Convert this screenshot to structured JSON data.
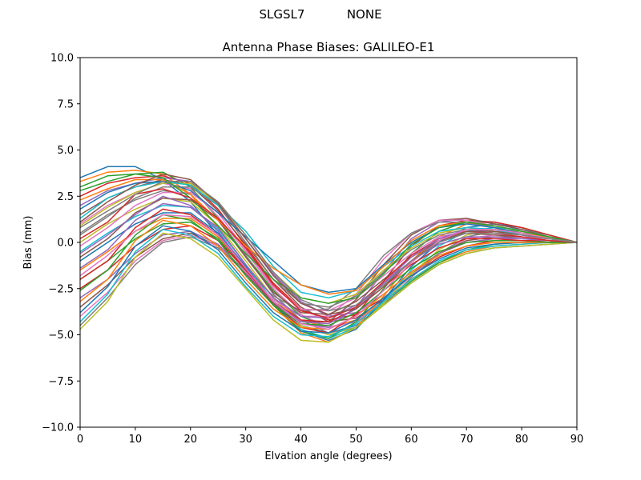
{
  "figure": {
    "suptitle_station": "SLGSL7",
    "suptitle_radome": "NONE"
  },
  "chart_data": {
    "type": "line",
    "title": "Antenna Phase Biases: GALILEO-E1",
    "xlabel": "Elvation angle (degrees)",
    "ylabel": "Bias (mm)",
    "xlim": [
      0,
      90
    ],
    "ylim": [
      -10,
      10
    ],
    "xticks": [
      0,
      10,
      20,
      30,
      40,
      50,
      60,
      70,
      80,
      90
    ],
    "yticks": [
      -10.0,
      -7.5,
      -5.0,
      -2.5,
      0.0,
      2.5,
      5.0,
      7.5,
      10.0
    ],
    "xtick_labels": [
      "0",
      "10",
      "20",
      "30",
      "40",
      "50",
      "60",
      "70",
      "80",
      "90"
    ],
    "ytick_labels": [
      "−10.0",
      "−7.5",
      "−5.0",
      "−2.5",
      "0.0",
      "2.5",
      "5.0",
      "7.5",
      "10.0"
    ],
    "grid": false,
    "legend": "none",
    "x": [
      0,
      5,
      10,
      15,
      20,
      25,
      30,
      35,
      40,
      45,
      50,
      55,
      60,
      65,
      70,
      75,
      80,
      85,
      90
    ],
    "colors": [
      "#1f77b4",
      "#ff7f0e",
      "#2ca02c",
      "#d62728",
      "#9467bd",
      "#8c564b",
      "#e377c2",
      "#7f7f7f",
      "#bcbd22",
      "#17becf"
    ],
    "series": [
      {
        "values": [
          3.5,
          4.1,
          4.1,
          3.4,
          2.2,
          0.4,
          -1.4,
          -3.2,
          -4.5,
          -4.9,
          -4.5,
          -3.4,
          -2.2,
          -1.2,
          -0.6,
          -0.3,
          -0.2,
          -0.1,
          0.0
        ]
      },
      {
        "values": [
          3.3,
          3.8,
          3.9,
          3.7,
          2.6,
          0.8,
          -1.2,
          -3.0,
          -4.2,
          -4.6,
          -4.2,
          -3.2,
          -2.0,
          -1.1,
          -0.5,
          -0.2,
          -0.1,
          0.0,
          0.0
        ]
      },
      {
        "values": [
          3.0,
          3.6,
          3.7,
          3.8,
          3.0,
          1.3,
          -0.7,
          -2.6,
          -4.0,
          -4.6,
          -4.3,
          -3.3,
          -2.1,
          -1.1,
          -0.4,
          -0.1,
          0.0,
          0.0,
          0.0
        ]
      },
      {
        "values": [
          2.5,
          3.2,
          3.5,
          3.6,
          3.2,
          1.8,
          -0.2,
          -2.2,
          -3.6,
          -4.2,
          -3.9,
          -3.0,
          -1.8,
          -0.8,
          -0.2,
          0.1,
          0.1,
          0.1,
          0.0
        ]
      },
      {
        "values": [
          2.0,
          2.8,
          3.2,
          3.5,
          3.3,
          2.0,
          0.2,
          -1.7,
          -3.2,
          -4.0,
          -3.8,
          -2.8,
          -1.6,
          -0.6,
          0.0,
          0.2,
          0.2,
          0.1,
          0.0
        ]
      },
      {
        "values": [
          1.5,
          2.4,
          3.0,
          3.4,
          3.1,
          1.7,
          -0.1,
          -2.0,
          -3.5,
          -4.3,
          -4.1,
          -3.1,
          -1.7,
          -0.6,
          0.1,
          0.3,
          0.3,
          0.2,
          0.0
        ]
      },
      {
        "values": [
          1.0,
          2.0,
          2.7,
          3.2,
          2.9,
          1.4,
          -0.5,
          -2.5,
          -3.9,
          -4.6,
          -4.3,
          -3.2,
          -1.8,
          -0.6,
          0.2,
          0.4,
          0.3,
          0.2,
          0.0
        ]
      },
      {
        "values": [
          0.5,
          1.5,
          2.3,
          2.8,
          2.6,
          1.2,
          -0.7,
          -2.8,
          -4.2,
          -4.9,
          -4.6,
          -3.4,
          -1.9,
          -0.6,
          0.3,
          0.6,
          0.5,
          0.3,
          0.0
        ]
      },
      {
        "values": [
          0.0,
          1.0,
          1.8,
          2.4,
          2.2,
          0.9,
          -1.0,
          -3.0,
          -4.5,
          -5.0,
          -4.6,
          -3.3,
          -1.7,
          -0.4,
          0.4,
          0.7,
          0.6,
          0.3,
          0.0
        ]
      },
      {
        "values": [
          -0.5,
          0.5,
          1.4,
          2.0,
          1.9,
          0.7,
          -1.2,
          -3.2,
          -4.7,
          -5.2,
          -4.6,
          -3.2,
          -1.5,
          -0.2,
          0.6,
          0.8,
          0.7,
          0.4,
          0.0
        ]
      },
      {
        "values": [
          -1.0,
          0.0,
          1.0,
          1.6,
          1.6,
          0.5,
          -1.3,
          -3.3,
          -4.8,
          -5.3,
          -4.7,
          -3.1,
          -1.3,
          0.0,
          0.8,
          1.0,
          0.8,
          0.4,
          0.0
        ]
      },
      {
        "values": [
          -1.5,
          -0.5,
          0.6,
          1.3,
          1.3,
          0.3,
          -1.4,
          -3.4,
          -4.9,
          -5.4,
          -4.6,
          -2.9,
          -1.0,
          0.3,
          1.0,
          1.1,
          0.8,
          0.4,
          0.0
        ]
      },
      {
        "values": [
          -2.0,
          -1.0,
          0.2,
          1.0,
          1.1,
          0.2,
          -1.5,
          -3.4,
          -4.8,
          -5.2,
          -4.3,
          -2.5,
          -0.6,
          0.6,
          1.1,
          1.1,
          0.8,
          0.4,
          0.0
        ]
      },
      {
        "values": [
          -2.5,
          -1.5,
          -0.2,
          0.7,
          0.9,
          0.1,
          -1.5,
          -3.3,
          -4.6,
          -4.9,
          -3.9,
          -2.1,
          -0.2,
          0.9,
          1.2,
          1.1,
          0.8,
          0.4,
          0.0
        ]
      },
      {
        "values": [
          -3.0,
          -2.0,
          -0.6,
          0.4,
          0.6,
          -0.1,
          -1.6,
          -3.3,
          -4.4,
          -4.6,
          -3.5,
          -1.6,
          0.2,
          1.1,
          1.3,
          1.0,
          0.7,
          0.3,
          0.0
        ]
      },
      {
        "values": [
          -3.5,
          -2.3,
          -0.8,
          0.2,
          0.5,
          -0.2,
          -1.7,
          -3.3,
          -4.3,
          -4.3,
          -3.1,
          -1.2,
          0.4,
          1.2,
          1.3,
          1.0,
          0.7,
          0.3,
          0.0
        ]
      },
      {
        "values": [
          -4.0,
          -2.7,
          -1.0,
          0.1,
          0.4,
          -0.2,
          -1.6,
          -3.1,
          -4.0,
          -4.0,
          -2.8,
          -0.9,
          0.5,
          1.2,
          1.2,
          0.9,
          0.6,
          0.3,
          0.0
        ]
      },
      {
        "values": [
          -4.5,
          -3.0,
          -1.2,
          0.0,
          0.3,
          -0.3,
          -1.5,
          -2.9,
          -3.7,
          -3.6,
          -2.5,
          -0.7,
          0.5,
          1.1,
          1.1,
          0.8,
          0.5,
          0.2,
          0.0
        ]
      },
      {
        "values": [
          -4.7,
          -3.2,
          -0.8,
          0.5,
          0.2,
          -0.8,
          -2.5,
          -4.2,
          -5.3,
          -5.4,
          -4.6,
          -3.4,
          -2.2,
          -1.2,
          -0.6,
          -0.3,
          -0.2,
          -0.1,
          0.0
        ]
      },
      {
        "values": [
          -4.3,
          -2.8,
          -0.5,
          0.7,
          0.4,
          -0.6,
          -2.4,
          -4.0,
          -5.0,
          -5.1,
          -4.4,
          -3.2,
          -2.0,
          -1.0,
          -0.4,
          -0.2,
          -0.1,
          0.0,
          0.0
        ]
      },
      {
        "values": [
          -3.8,
          -2.4,
          -0.2,
          0.9,
          0.6,
          -0.4,
          -2.2,
          -3.8,
          -4.8,
          -4.9,
          -4.2,
          -3.0,
          -1.8,
          -0.9,
          -0.3,
          -0.1,
          0.0,
          0.0,
          0.0
        ]
      },
      {
        "values": [
          -3.2,
          -2.0,
          0.1,
          1.2,
          0.9,
          -0.2,
          -2.0,
          -3.6,
          -4.6,
          -4.7,
          -4.0,
          -2.8,
          -1.6,
          -0.7,
          -0.2,
          0.0,
          0.0,
          0.0,
          0.0
        ]
      },
      {
        "values": [
          -2.6,
          -1.5,
          0.4,
          1.5,
          1.2,
          0.1,
          -1.8,
          -3.4,
          -4.4,
          -4.5,
          -3.8,
          -2.6,
          -1.4,
          -0.5,
          0.0,
          0.1,
          0.1,
          0.0,
          0.0
        ]
      },
      {
        "values": [
          -2.0,
          -1.0,
          0.8,
          1.8,
          1.5,
          0.4,
          -1.5,
          -3.2,
          -4.2,
          -4.3,
          -3.6,
          -2.4,
          -1.2,
          -0.3,
          0.2,
          0.2,
          0.1,
          0.1,
          0.0
        ]
      },
      {
        "values": [
          -1.4,
          -0.4,
          1.2,
          2.1,
          1.9,
          0.8,
          -1.2,
          -3.0,
          -4.0,
          -4.1,
          -3.4,
          -2.2,
          -1.0,
          -0.1,
          0.3,
          0.3,
          0.2,
          0.1,
          0.0
        ]
      },
      {
        "values": [
          -0.8,
          0.2,
          1.6,
          2.4,
          2.3,
          1.2,
          -0.8,
          -2.7,
          -3.8,
          -3.9,
          -3.2,
          -2.0,
          -0.8,
          0.1,
          0.5,
          0.4,
          0.3,
          0.1,
          0.0
        ]
      },
      {
        "values": [
          -0.2,
          0.8,
          2.0,
          2.7,
          2.7,
          1.6,
          -0.4,
          -2.4,
          -3.6,
          -3.7,
          -3.0,
          -1.8,
          -0.6,
          0.3,
          0.6,
          0.5,
          0.3,
          0.1,
          0.0
        ]
      },
      {
        "values": [
          0.4,
          1.4,
          2.4,
          3.0,
          3.0,
          2.0,
          0.0,
          -2.0,
          -3.3,
          -3.5,
          -2.9,
          -1.6,
          -0.4,
          0.4,
          0.7,
          0.6,
          0.4,
          0.2,
          0.0
        ]
      },
      {
        "values": [
          0.9,
          1.9,
          2.7,
          3.2,
          3.2,
          2.1,
          0.4,
          -1.6,
          -3.0,
          -3.3,
          -2.8,
          -1.5,
          -0.3,
          0.5,
          0.8,
          0.6,
          0.4,
          0.2,
          0.0
        ]
      },
      {
        "values": [
          1.3,
          2.4,
          3.0,
          3.3,
          3.1,
          2.0,
          0.6,
          -1.3,
          -2.7,
          -3.0,
          -2.6,
          -1.3,
          -0.2,
          0.6,
          0.8,
          0.7,
          0.4,
          0.2,
          0.0
        ]
      },
      {
        "values": [
          1.8,
          2.7,
          3.2,
          3.3,
          2.8,
          1.6,
          0.3,
          -1.0,
          -2.3,
          -2.7,
          -2.5,
          -1.2,
          0.0,
          0.8,
          1.0,
          0.8,
          0.5,
          0.2,
          0.0
        ]
      },
      {
        "values": [
          2.3,
          2.9,
          3.4,
          3.4,
          2.6,
          1.2,
          -0.2,
          -1.4,
          -2.3,
          -2.8,
          -2.6,
          -1.3,
          0.1,
          0.9,
          1.1,
          0.9,
          0.6,
          0.2,
          0.0
        ]
      },
      {
        "values": [
          2.8,
          3.3,
          3.7,
          3.5,
          2.4,
          0.9,
          -0.6,
          -2.0,
          -3.0,
          -3.3,
          -3.0,
          -1.7,
          -0.1,
          0.8,
          1.1,
          0.9,
          0.6,
          0.3,
          0.0
        ]
      },
      {
        "values": [
          0.2,
          1.1,
          2.6,
          2.9,
          2.4,
          1.3,
          -0.3,
          -2.3,
          -3.7,
          -4.1,
          -3.5,
          -2.1,
          -0.7,
          0.2,
          0.6,
          0.5,
          0.3,
          0.1,
          0.0
        ]
      },
      {
        "values": [
          -0.6,
          0.4,
          1.5,
          2.5,
          2.0,
          0.6,
          -1.4,
          -3.2,
          -4.3,
          -4.4,
          -3.6,
          -2.2,
          -0.8,
          0.2,
          0.7,
          0.6,
          0.4,
          0.2,
          0.0
        ]
      },
      {
        "values": [
          1.1,
          2.2,
          3.1,
          3.7,
          3.4,
          2.1,
          0.2,
          -1.8,
          -3.3,
          -3.9,
          -3.6,
          -2.4,
          -1.0,
          0.1,
          0.6,
          0.6,
          0.4,
          0.2,
          0.0
        ]
      },
      {
        "values": [
          -1.8,
          -0.7,
          0.6,
          1.5,
          1.4,
          0.4,
          -1.4,
          -3.2,
          -4.4,
          -4.7,
          -4.0,
          -2.6,
          -1.1,
          0.1,
          0.7,
          0.7,
          0.5,
          0.2,
          0.0
        ]
      },
      {
        "values": [
          0.8,
          1.7,
          2.6,
          3.3,
          3.3,
          2.2,
          0.4,
          -1.6,
          -3.1,
          -3.7,
          -3.4,
          -2.3,
          -1.0,
          0.0,
          0.5,
          0.5,
          0.4,
          0.2,
          0.0
        ]
      }
    ]
  }
}
